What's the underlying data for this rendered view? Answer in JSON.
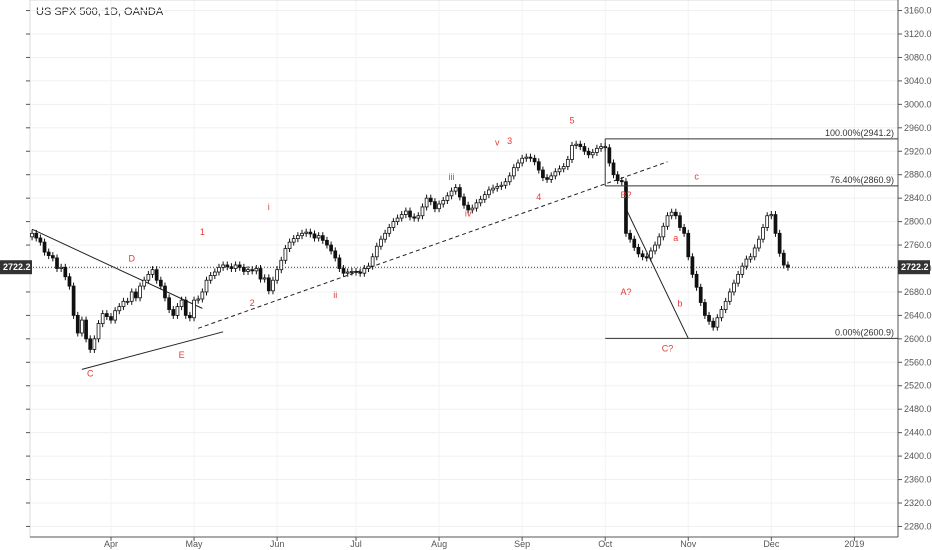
{
  "header": {
    "symbol_label": "US SPX 500, 1D, OANDA"
  },
  "chart_data": {
    "type": "candlestick",
    "title": "US SPX 500, 1D, OANDA",
    "ylim": [
      2262,
      3178
    ],
    "y_ticks": [
      2280,
      2320,
      2360,
      2400,
      2440,
      2480,
      2520,
      2560,
      2600,
      2640,
      2680,
      2720,
      2760,
      2800,
      2840,
      2880,
      2920,
      2960,
      3000,
      3040,
      3080,
      3120,
      3160
    ],
    "x_ticks": [
      "Apr",
      "May",
      "Jun",
      "Jul",
      "Aug",
      "Sep",
      "Oct",
      "Nov",
      "Dec",
      "2019"
    ],
    "x_tick_bar_index": [
      19,
      39,
      59,
      78,
      98,
      118,
      138,
      158,
      178,
      198
    ],
    "total_bar_slots": 209,
    "last_price": "2722.2",
    "last_price_value": 2722.2,
    "closes": [
      2780,
      2772,
      2765,
      2748,
      2742,
      2738,
      2720,
      2722,
      2706,
      2690,
      2640,
      2610,
      2632,
      2600,
      2582,
      2600,
      2626,
      2643,
      2638,
      2632,
      2648,
      2655,
      2664,
      2664,
      2680,
      2670,
      2690,
      2700,
      2710,
      2718,
      2700,
      2690,
      2670,
      2650,
      2640,
      2655,
      2666,
      2640,
      2636,
      2666,
      2668,
      2680,
      2700,
      2708,
      2714,
      2722,
      2726,
      2723,
      2720,
      2726,
      2722,
      2715,
      2718,
      2716,
      2720,
      2702,
      2704,
      2682,
      2700,
      2718,
      2734,
      2754,
      2765,
      2771,
      2776,
      2780,
      2782,
      2779,
      2772,
      2776,
      2768,
      2760,
      2750,
      2738,
      2720,
      2712,
      2714,
      2715,
      2714,
      2712,
      2720,
      2724,
      2740,
      2758,
      2770,
      2780,
      2790,
      2800,
      2806,
      2812,
      2818,
      2808,
      2806,
      2810,
      2825,
      2840,
      2834,
      2822,
      2830,
      2836,
      2844,
      2852,
      2858,
      2842,
      2828,
      2820,
      2823,
      2832,
      2838,
      2846,
      2854,
      2857,
      2860,
      2862,
      2868,
      2878,
      2892,
      2900,
      2908,
      2910,
      2908,
      2902,
      2888,
      2875,
      2872,
      2878,
      2885,
      2890,
      2894,
      2906,
      2930,
      2932,
      2928,
      2920,
      2914,
      2918,
      2925,
      2928,
      2926,
      2900,
      2880,
      2870,
      2868,
      2780,
      2770,
      2756,
      2745,
      2740,
      2738,
      2750,
      2760,
      2774,
      2792,
      2810,
      2816,
      2810,
      2790,
      2780,
      2740,
      2710,
      2688,
      2662,
      2640,
      2630,
      2620,
      2636,
      2650,
      2664,
      2680,
      2695,
      2710,
      2724,
      2736,
      2740,
      2755,
      2770,
      2790,
      2810,
      2812,
      2780,
      2746,
      2726,
      2722.2
    ],
    "annotations": [
      {
        "text": "D",
        "bar": 24,
        "price": 2732
      },
      {
        "text": "C",
        "bar": 14,
        "price": 2536
      },
      {
        "text": "E",
        "bar": 36,
        "price": 2567
      },
      {
        "text": "1",
        "bar": 41,
        "price": 2777
      },
      {
        "text": "2",
        "bar": 53,
        "price": 2656
      },
      {
        "text": "i",
        "bar": 57,
        "price": 2820
      },
      {
        "text": "ii",
        "bar": 73,
        "price": 2670
      },
      {
        "text": "iii",
        "bar": 101,
        "price": 2871
      },
      {
        "text": "iv",
        "bar": 105,
        "price": 2809
      },
      {
        "text": "v",
        "bar": 112,
        "price": 2930
      },
      {
        "text": "3",
        "bar": 115,
        "price": 2932
      },
      {
        "text": "4",
        "bar": 122,
        "price": 2837
      },
      {
        "text": "5",
        "bar": 130,
        "price": 2967
      },
      {
        "text": "A?",
        "bar": 143,
        "price": 2675
      },
      {
        "text": "B?",
        "bar": 143,
        "price": 2840
      },
      {
        "text": "C?",
        "bar": 153,
        "price": 2578
      },
      {
        "text": "a",
        "bar": 155,
        "price": 2767
      },
      {
        "text": "b",
        "bar": 156,
        "price": 2655
      },
      {
        "text": "c",
        "bar": 160,
        "price": 2872
      }
    ],
    "fib_levels": [
      {
        "label": "100.00%(2941.2)",
        "price": 2941.2
      },
      {
        "label": "76.40%(2860.9)",
        "price": 2860.9
      },
      {
        "label": "0.00%(2600.9)",
        "price": 2600.9
      }
    ],
    "trendlines": [
      {
        "style": "solid",
        "from": [
          0,
          2787
        ],
        "to": [
          41,
          2652
        ]
      },
      {
        "style": "solid",
        "from": [
          12,
          2548
        ],
        "to": [
          46,
          2612
        ]
      },
      {
        "style": "dashed",
        "from": [
          40,
          2618
        ],
        "to": [
          153,
          2902
        ]
      },
      {
        "style": "solid",
        "from": [
          143,
          2822
        ],
        "to": [
          158,
          2600.9
        ]
      }
    ]
  }
}
